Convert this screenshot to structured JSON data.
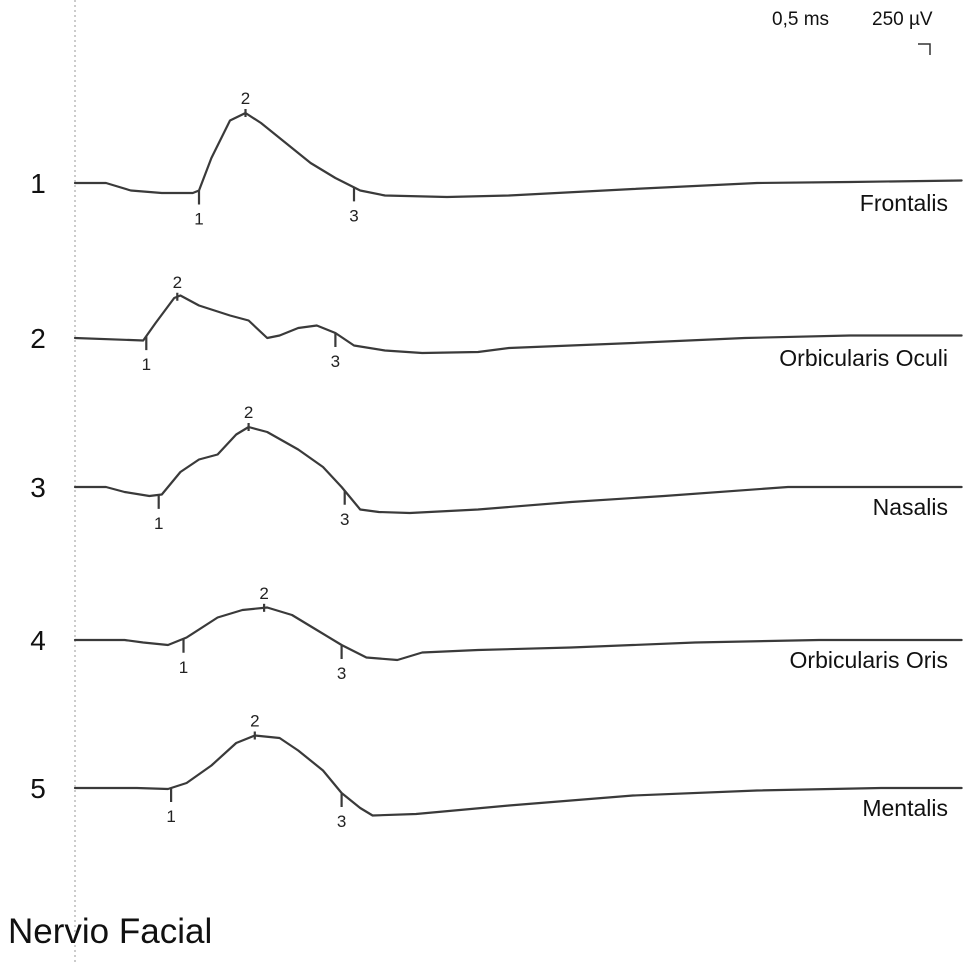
{
  "title": "Nervio Facial",
  "scale": {
    "time": "0,5 ms",
    "amplitude": "250 µV"
  },
  "chart_data": {
    "type": "line",
    "title": "Nervio Facial",
    "time_scale": "0,5 ms",
    "amplitude_scale": "250 µV",
    "marker_labels": [
      "1",
      "2",
      "3"
    ],
    "traces": [
      {
        "index": "1",
        "name": "Frontalis",
        "points": [
          [
            0.0,
            0
          ],
          [
            0.5,
            0
          ],
          [
            0.9,
            -0.15
          ],
          [
            1.4,
            -0.2
          ],
          [
            1.9,
            -0.2
          ],
          [
            2.0,
            -0.15
          ],
          [
            2.2,
            0.5
          ],
          [
            2.5,
            1.25
          ],
          [
            2.75,
            1.4
          ],
          [
            3.0,
            1.2
          ],
          [
            3.4,
            0.8
          ],
          [
            3.8,
            0.4
          ],
          [
            4.2,
            0.1
          ],
          [
            4.6,
            -0.15
          ],
          [
            5.0,
            -0.25
          ],
          [
            6.0,
            -0.28
          ],
          [
            7.0,
            -0.25
          ],
          [
            9.0,
            -0.12
          ],
          [
            11.0,
            0
          ],
          [
            12.5,
            0.02
          ],
          [
            14.3,
            0.05
          ]
        ],
        "markers": {
          "1": 2.0,
          "2": 2.75,
          "3": 4.5
        }
      },
      {
        "index": "2",
        "name": "Orbicularis Oculi",
        "points": [
          [
            0.0,
            0
          ],
          [
            1.1,
            -0.05
          ],
          [
            1.3,
            0.3
          ],
          [
            1.6,
            0.8
          ],
          [
            1.7,
            0.85
          ],
          [
            2.0,
            0.65
          ],
          [
            2.5,
            0.45
          ],
          [
            2.8,
            0.35
          ],
          [
            3.1,
            0.0
          ],
          [
            3.3,
            0.05
          ],
          [
            3.6,
            0.2
          ],
          [
            3.9,
            0.25
          ],
          [
            4.2,
            0.1
          ],
          [
            4.5,
            -0.15
          ],
          [
            5.0,
            -0.25
          ],
          [
            5.6,
            -0.3
          ],
          [
            6.5,
            -0.28
          ],
          [
            7.0,
            -0.2
          ],
          [
            9.0,
            -0.1
          ],
          [
            10.8,
            0
          ],
          [
            12.5,
            0.05
          ],
          [
            14.3,
            0.05
          ]
        ],
        "markers": {
          "1": 1.15,
          "2": 1.65,
          "3": 4.2
        }
      },
      {
        "index": "3",
        "name": "Nasalis",
        "points": [
          [
            0.0,
            0
          ],
          [
            0.5,
            0
          ],
          [
            0.8,
            -0.1
          ],
          [
            1.2,
            -0.18
          ],
          [
            1.4,
            -0.15
          ],
          [
            1.7,
            0.3
          ],
          [
            2.0,
            0.55
          ],
          [
            2.3,
            0.65
          ],
          [
            2.6,
            1.05
          ],
          [
            2.8,
            1.2
          ],
          [
            3.1,
            1.1
          ],
          [
            3.6,
            0.75
          ],
          [
            4.0,
            0.4
          ],
          [
            4.3,
            0.0
          ],
          [
            4.6,
            -0.45
          ],
          [
            4.9,
            -0.5
          ],
          [
            5.4,
            -0.52
          ],
          [
            6.5,
            -0.45
          ],
          [
            8.0,
            -0.3
          ],
          [
            9.5,
            -0.18
          ],
          [
            11.5,
            0
          ],
          [
            14.3,
            0.0
          ]
        ],
        "markers": {
          "1": 1.35,
          "2": 2.8,
          "3": 4.35
        }
      },
      {
        "index": "4",
        "name": "Orbicularis Oris",
        "points": [
          [
            0.0,
            0
          ],
          [
            0.8,
            0
          ],
          [
            1.1,
            -0.05
          ],
          [
            1.5,
            -0.1
          ],
          [
            1.8,
            0.05
          ],
          [
            2.3,
            0.45
          ],
          [
            2.7,
            0.6
          ],
          [
            3.1,
            0.65
          ],
          [
            3.5,
            0.5
          ],
          [
            3.9,
            0.2
          ],
          [
            4.3,
            -0.1
          ],
          [
            4.7,
            -0.35
          ],
          [
            5.2,
            -0.4
          ],
          [
            5.6,
            -0.25
          ],
          [
            6.5,
            -0.2
          ],
          [
            8.0,
            -0.15
          ],
          [
            10.0,
            -0.05
          ],
          [
            12.0,
            0.0
          ],
          [
            14.3,
            0.0
          ]
        ],
        "markers": {
          "1": 1.75,
          "2": 3.05,
          "3": 4.3
        }
      },
      {
        "index": "5",
        "name": "Mentalis",
        "points": [
          [
            0.0,
            0
          ],
          [
            1.0,
            0
          ],
          [
            1.5,
            -0.02
          ],
          [
            1.8,
            0.1
          ],
          [
            2.2,
            0.45
          ],
          [
            2.6,
            0.9
          ],
          [
            2.9,
            1.05
          ],
          [
            3.3,
            1.0
          ],
          [
            3.6,
            0.75
          ],
          [
            4.0,
            0.35
          ],
          [
            4.3,
            -0.1
          ],
          [
            4.6,
            -0.4
          ],
          [
            4.8,
            -0.55
          ],
          [
            5.5,
            -0.52
          ],
          [
            7.0,
            -0.35
          ],
          [
            9.0,
            -0.15
          ],
          [
            11.0,
            -0.05
          ],
          [
            13.0,
            0.0
          ],
          [
            14.3,
            0.0
          ]
        ],
        "markers": {
          "1": 1.55,
          "2": 2.9,
          "3": 4.3
        }
      }
    ]
  }
}
